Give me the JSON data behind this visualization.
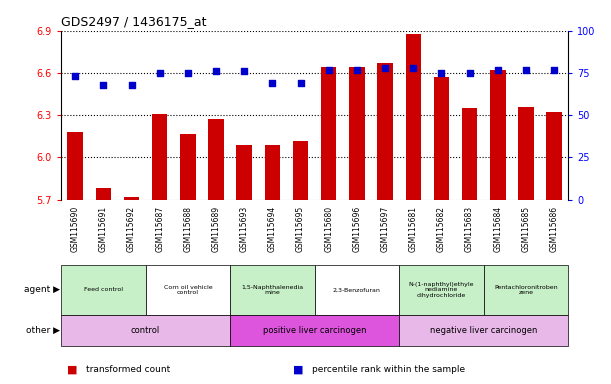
{
  "title": "GDS2497 / 1436175_at",
  "samples": [
    "GSM115690",
    "GSM115691",
    "GSM115692",
    "GSM115687",
    "GSM115688",
    "GSM115689",
    "GSM115693",
    "GSM115694",
    "GSM115695",
    "GSM115680",
    "GSM115696",
    "GSM115697",
    "GSM115681",
    "GSM115682",
    "GSM115683",
    "GSM115684",
    "GSM115685",
    "GSM115686"
  ],
  "transformed_count": [
    6.18,
    5.78,
    5.72,
    6.31,
    6.17,
    6.27,
    6.09,
    6.09,
    6.12,
    6.64,
    6.64,
    6.67,
    6.88,
    6.57,
    6.35,
    6.62,
    6.36,
    6.32
  ],
  "percentile_rank": [
    73,
    68,
    68,
    75,
    75,
    76,
    76,
    69,
    69,
    77,
    77,
    78,
    78,
    75,
    75,
    77,
    77,
    77
  ],
  "ylim_left": [
    5.7,
    6.9
  ],
  "ylim_right": [
    0,
    100
  ],
  "yticks_left": [
    5.7,
    6.0,
    6.3,
    6.6,
    6.9
  ],
  "yticks_right": [
    0,
    25,
    50,
    75,
    100
  ],
  "bar_color": "#cc0000",
  "dot_color": "#0000cc",
  "background_color": "#ffffff",
  "agent_groups": [
    {
      "label": "Feed control",
      "start": 0,
      "end": 3,
      "color": "#c8f0c8"
    },
    {
      "label": "Corn oil vehicle\ncontrol",
      "start": 3,
      "end": 6,
      "color": "#ffffff"
    },
    {
      "label": "1,5-Naphthalenedia\nmine",
      "start": 6,
      "end": 9,
      "color": "#c8f0c8"
    },
    {
      "label": "2,3-Benzofuran",
      "start": 9,
      "end": 12,
      "color": "#ffffff"
    },
    {
      "label": "N-(1-naphthyl)ethyle\nnediamine\ndihydrochloride",
      "start": 12,
      "end": 15,
      "color": "#c8f0c8"
    },
    {
      "label": "Pentachloronitroben\nzene",
      "start": 15,
      "end": 18,
      "color": "#c8f0c8"
    }
  ],
  "other_groups": [
    {
      "label": "control",
      "start": 0,
      "end": 6,
      "color": "#e8b8e8"
    },
    {
      "label": "positive liver carcinogen",
      "start": 6,
      "end": 12,
      "color": "#dd55dd"
    },
    {
      "label": "negative liver carcinogen",
      "start": 12,
      "end": 18,
      "color": "#e8b8e8"
    }
  ],
  "legend_items": [
    {
      "label": "transformed count",
      "color": "#cc0000"
    },
    {
      "label": "percentile rank within the sample",
      "color": "#0000cc"
    }
  ],
  "agent_label": "agent",
  "other_label": "other"
}
